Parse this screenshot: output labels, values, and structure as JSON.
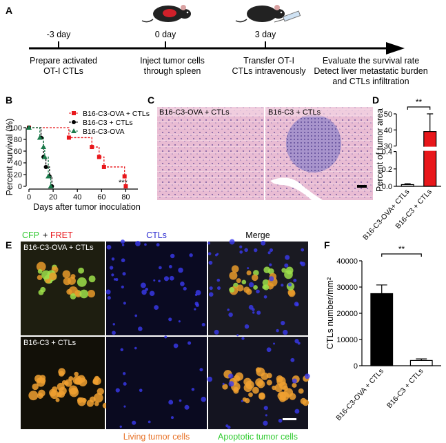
{
  "figure": {
    "panel_labels": [
      "A",
      "B",
      "C",
      "D",
      "E",
      "F"
    ],
    "timeline": {
      "events": [
        {
          "day": "-3 day",
          "lines": [
            "Prepare activated",
            "OT-I CTLs"
          ]
        },
        {
          "day": "0 day",
          "lines": [
            "Inject tumor cells",
            "through spleen"
          ]
        },
        {
          "day": "3 day",
          "lines": [
            "Transfer OT-I",
            "CTLs intravenously"
          ]
        }
      ],
      "end_lines": [
        "Evaluate the survival rate",
        "Detect liver metastatic burden",
        "and CTLs infiltration"
      ]
    },
    "panel_c": {
      "labels": [
        "B16-C3-OVA + CTLs",
        "B16-C3 + CTLs"
      ]
    },
    "panel_e": {
      "headers": {
        "cfp": "CFP",
        "plus": "+",
        "fret": "FRET",
        "ctls": "CTLs",
        "merge": "Merge"
      },
      "row_labels": [
        "B16-C3-OVA + CTLs",
        "B16-C3 + CTLs"
      ],
      "footer": [
        "Living tumor cells",
        "Apoptotic tumor cells"
      ]
    }
  },
  "chart_data": [
    {
      "type": "step",
      "ylabel": "Percent survival (%)",
      "xlabel": "Days after tumor inoculation",
      "xlim": [
        0,
        90
      ],
      "xticks": [
        0,
        20,
        40,
        60,
        80
      ],
      "ylim": [
        0,
        100
      ],
      "yticks": [
        0,
        20,
        40,
        60,
        80,
        100
      ],
      "annotation": "***",
      "series": [
        {
          "name": "B16-C3-OVA + CTLs",
          "color": "#e8171b",
          "marker": "square",
          "x": [
            0,
            33,
            52,
            58,
            62,
            79,
            80
          ],
          "values": [
            100,
            83,
            67,
            50,
            33,
            17,
            0
          ]
        },
        {
          "name": "B16-C3 + CTLs",
          "color": "#000000",
          "marker": "circle",
          "x": [
            0,
            10,
            12,
            14,
            17,
            19
          ],
          "values": [
            100,
            83,
            50,
            33,
            17,
            0
          ]
        },
        {
          "name": "B16-C3-OVA",
          "color": "#1a7a4a",
          "marker": "triangle",
          "x": [
            0,
            9,
            12,
            13,
            16,
            18
          ],
          "values": [
            100,
            83,
            67,
            50,
            17,
            0
          ]
        }
      ]
    },
    {
      "type": "bar",
      "ylabel": "Percent of tumor area",
      "categories": [
        "B16-C3-OVA+ CTLs",
        "B16-C3 + CTLs"
      ],
      "values": [
        0.02,
        39
      ],
      "errors": [
        0.01,
        11
      ],
      "colors": [
        "#ffffff",
        "#e8171b"
      ],
      "ylim": [
        0,
        50
      ],
      "y_break": [
        0.4,
        30
      ],
      "yticks": [
        {
          "value": 0,
          "label": "0.0"
        },
        0.2,
        0.4,
        30,
        40,
        50
      ],
      "annotation": "**"
    },
    {
      "type": "bar",
      "ylabel": "CTLs number/mm²",
      "categories": [
        "B16-C3-OVA + CTLs",
        "B16-C3 + CTLs"
      ],
      "values": [
        27500,
        2000
      ],
      "errors": [
        3300,
        600
      ],
      "colors": [
        "#000000",
        "#ffffff"
      ],
      "ylim": [
        0,
        40000
      ],
      "yticks": [
        0,
        10000,
        20000,
        30000,
        40000
      ],
      "annotation": "**"
    }
  ]
}
